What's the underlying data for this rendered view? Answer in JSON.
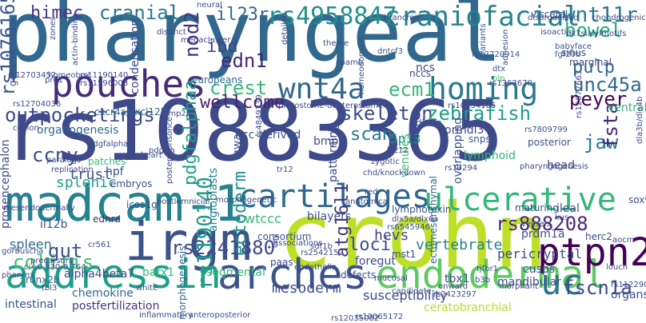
{
  "words": [
    {
      "text": "pharyngeal",
      "color": "#31688e"
    },
    {
      "text": "rs10883365",
      "color": "#3e4a89"
    },
    {
      "text": "crohn",
      "color": "#bddf26"
    },
    {
      "text": "madcam-1",
      "color": "#26828e"
    },
    {
      "text": "irgm",
      "color": "#3b528b"
    },
    {
      "text": "addressin",
      "color": "#1f9e89"
    },
    {
      "text": "pouches",
      "color": "#472c7a"
    },
    {
      "text": "arches",
      "color": "#3b528b"
    },
    {
      "text": "endodermal",
      "color": "#5ec962"
    },
    {
      "text": "cartilages",
      "color": "#31688e"
    },
    {
      "text": "ulcerative",
      "color": "#35b779"
    },
    {
      "text": "homing",
      "color": "#2a788e"
    },
    {
      "text": "ptpn2",
      "color": "#440154"
    },
    {
      "text": "wnt4a",
      "color": "#31688e"
    },
    {
      "text": "craniofacial",
      "color": "#26828e"
    },
    {
      "text": "rs4958847",
      "color": "#21918c"
    },
    {
      "text": "skeleton",
      "color": "#3e4a89"
    },
    {
      "text": "zebrafish",
      "color": "#1f9e89"
    },
    {
      "text": "rs2241880",
      "color": "#3e4a89"
    },
    {
      "text": "rs1190140",
      "color": "#1f9e89"
    },
    {
      "text": "rs888208",
      "color": "#482878"
    },
    {
      "text": "outpocketings",
      "color": "#3e4a89"
    },
    {
      "text": "rs10761659",
      "color": "#39568c"
    },
    {
      "text": "uc",
      "color": "#2a788e"
    },
    {
      "text": "ccny",
      "color": "#3e4a89"
    },
    {
      "text": "colitis",
      "color": "#44bf70"
    },
    {
      "text": "gut",
      "color": "#3b528b"
    },
    {
      "text": "ecm1",
      "color": "#35b779"
    },
    {
      "text": "wnt11r",
      "color": "#2a788e"
    },
    {
      "text": "bowel",
      "color": "#22a884"
    },
    {
      "text": "unc45a",
      "color": "#31688e"
    },
    {
      "text": "peyer",
      "color": "#440154"
    },
    {
      "text": "crest",
      "color": "#35b779"
    },
    {
      "text": "wellcome",
      "color": "#481f70"
    },
    {
      "text": "edn1",
      "color": "#482878"
    },
    {
      "text": "ibd",
      "color": "#414487"
    },
    {
      "text": "il23r",
      "color": "#31688e"
    },
    {
      "text": "cranial",
      "color": "#2a788e"
    },
    {
      "text": "himec",
      "color": "#443983"
    },
    {
      "text": "nod2",
      "color": "#46327e"
    },
    {
      "text": "scan",
      "color": "#2a788e"
    },
    {
      "text": "pdgfalphaa",
      "color": "#1f9e89"
    },
    {
      "text": "loci",
      "color": "#3b528b"
    },
    {
      "text": "ectoderm",
      "color": "#21918c"
    },
    {
      "text": "atg16l1",
      "color": "#46327e"
    },
    {
      "text": "fscn1a",
      "color": "#3e4a89"
    },
    {
      "text": "jaw",
      "color": "#2a788e"
    },
    {
      "text": "fsta",
      "color": "#482878"
    },
    {
      "text": "pulp",
      "color": "#31688e"
    },
    {
      "text": "mesoderm",
      "color": "#3e4a89"
    },
    {
      "text": "vertebrate",
      "color": "#26828e"
    },
    {
      "text": "hevs",
      "color": "#414487"
    },
    {
      "text": "5p13",
      "color": "#21918c"
    },
    {
      "text": "pericryptal",
      "color": "#3e4a89"
    },
    {
      "text": "trust",
      "color": "#3b528b"
    },
    {
      "text": "splenic",
      "color": "#1f9e89"
    },
    {
      "text": "organogenesis",
      "color": "#31688e"
    },
    {
      "text": "genome-wide",
      "color": "#3b528b"
    },
    {
      "text": "cxcr4a/cxcl12b",
      "color": "#31688e"
    },
    {
      "text": "condensation",
      "color": "#3e4a89"
    },
    {
      "text": "europeans",
      "color": "#31688e"
    },
    {
      "text": "ncc-derived",
      "color": "#3b528b"
    },
    {
      "text": "lymphotoxin",
      "color": "#3b528b"
    },
    {
      "text": "sox9b",
      "color": "#3b528b"
    },
    {
      "text": "il12b",
      "color": "#3e4a89"
    },
    {
      "text": "alpha4beta7",
      "color": "#3e4a89"
    },
    {
      "text": "barx1",
      "color": "#35b779"
    },
    {
      "text": "chemokine",
      "color": "#31688e"
    },
    {
      "text": "intestinal",
      "color": "#3b528b"
    },
    {
      "text": "postfertilization",
      "color": "#46327e"
    },
    {
      "text": "runx2b",
      "color": "#31688e"
    },
    {
      "text": "spleen",
      "color": "#31688e"
    },
    {
      "text": "prosencephalon",
      "color": "#3e4a89"
    },
    {
      "text": "hpf",
      "color": "#3b528b"
    },
    {
      "text": "embryos",
      "color": "#3b528b"
    },
    {
      "text": "patches",
      "color": "#35b779"
    },
    {
      "text": "icos1g",
      "color": "#3e4a89"
    },
    {
      "text": "ednra",
      "color": "#482878"
    },
    {
      "text": "angioblasts",
      "color": "#26828e"
    },
    {
      "text": "gwas",
      "color": "#3b528b"
    },
    {
      "text": "wtccc",
      "color": "#35b779"
    },
    {
      "text": "consortium",
      "color": "#3b528b"
    },
    {
      "text": "bilayers",
      "color": "#3b528b"
    },
    {
      "text": "foregut",
      "color": "#3e4a89"
    },
    {
      "text": "defects",
      "color": "#3e4a89"
    },
    {
      "text": "paas",
      "color": "#3e4a89"
    },
    {
      "text": "segmental",
      "color": "#35b779"
    },
    {
      "text": "morphogenesis",
      "color": "#31688e"
    },
    {
      "text": "cusps",
      "color": "#3b528b"
    },
    {
      "text": "tbx1",
      "color": "#3e4a89"
    },
    {
      "text": "mandibular",
      "color": "#3e4a89"
    },
    {
      "text": "organs",
      "color": "#3b528b"
    },
    {
      "text": "susceptibility",
      "color": "#3e4a89"
    },
    {
      "text": "ceratobranchial",
      "color": "#b5de2b"
    },
    {
      "text": "ectomesenchymal",
      "color": "#31688e"
    },
    {
      "text": "mst1",
      "color": "#3e4a89"
    },
    {
      "text": "ileal",
      "color": "#3b528b"
    },
    {
      "text": "maturing",
      "color": "#3b528b"
    },
    {
      "text": "overlapping",
      "color": "#3b528b"
    },
    {
      "text": "lymphoid",
      "color": "#35b779"
    },
    {
      "text": "snps",
      "color": "#3b528b"
    },
    {
      "text": "head",
      "color": "#3e4a89"
    },
    {
      "text": "ormdl3",
      "color": "#3e4a89"
    },
    {
      "text": "dlx2a",
      "color": "#3b528b"
    },
    {
      "text": "bmp",
      "color": "#3e4a89"
    },
    {
      "text": "patterning",
      "color": "#3e4a89"
    },
    {
      "text": "venules",
      "color": "#44bf70"
    },
    {
      "text": "posterior",
      "color": "#3b528b"
    },
    {
      "text": "prdm1a",
      "color": "#3b528b"
    },
    {
      "text": "herc2",
      "color": "#3e4a89"
    },
    {
      "text": "sinus",
      "color": "#3e4a89"
    },
    {
      "text": "marginal",
      "color": "#3e4a89"
    },
    {
      "text": "ncs",
      "color": "#3e4a89"
    },
    {
      "text": "ventral",
      "color": "#35b779"
    },
    {
      "text": "neural",
      "color": "#3e4a89"
    },
    {
      "text": "visceral",
      "color": "#3b528b"
    },
    {
      "text": "rs10761659",
      "color": "#3b528b"
    },
    {
      "text": "fgf20b",
      "color": "#3b528b"
    },
    {
      "text": "babyface",
      "color": "#3b528b"
    },
    {
      "text": "plp",
      "color": "#44bf70"
    },
    {
      "text": "dtx",
      "color": "#3b528b"
    },
    {
      "text": "chondrogenic",
      "color": "#3e4a89"
    },
    {
      "text": "nk7sialylmotifs",
      "color": "#3e4a89"
    },
    {
      "text": "isoactin",
      "color": "#3e4a89"
    },
    {
      "text": "adhesion",
      "color": "#3b528b"
    },
    {
      "text": "branchial",
      "color": "#3e4a89"
    },
    {
      "text": "disorganized",
      "color": "#3e4a89"
    },
    {
      "text": "variants",
      "color": "#3b528b"
    },
    {
      "text": "homeodomain",
      "color": "#3b528b"
    },
    {
      "text": "homeobox",
      "color": "#3b528b"
    },
    {
      "text": "dntcf3",
      "color": "#3b528b"
    },
    {
      "text": "cpamb",
      "color": "#3e4a89"
    },
    {
      "text": "theme",
      "color": "#3e4a89"
    },
    {
      "text": "megacluster",
      "color": "#3e4a89"
    },
    {
      "text": "distinct",
      "color": "#3e4a89"
    },
    {
      "text": "detailed",
      "color": "#3e4a89"
    },
    {
      "text": "prg1",
      "color": "#3b528b"
    },
    {
      "text": "actin-binding",
      "color": "#3e4a89"
    },
    {
      "text": "zones",
      "color": "#3e4a89"
    },
    {
      "text": "rs12704036",
      "color": "#3e4a89"
    },
    {
      "text": "rs11190140",
      "color": "#3e4a89"
    },
    {
      "text": "rs11596008",
      "color": "#3e4a89"
    },
    {
      "text": "ceylon",
      "color": "#3e4a89"
    },
    {
      "text": "protostome-deuterostome",
      "color": "#3e4a89"
    },
    {
      "text": "rs10734105",
      "color": "#3e4a89"
    },
    {
      "text": "rs7809799",
      "color": "#3b528b"
    },
    {
      "text": "rs12677663",
      "color": "#3e4a89"
    },
    {
      "text": "rs1363670",
      "color": "#3e4a89"
    },
    {
      "text": "rs12720914",
      "color": "#3b528b"
    },
    {
      "text": "paralogs",
      "color": "#3e4a89"
    },
    {
      "text": "replication",
      "color": "#3e4a89"
    },
    {
      "text": "pdgfalphab",
      "color": "#3e4a89"
    },
    {
      "text": "heart",
      "color": "#3e4a89"
    },
    {
      "text": "postepiconsonce",
      "color": "#3e4a89"
    },
    {
      "text": "rs4849339",
      "color": "#3e4a89"
    },
    {
      "text": "mesendodermally",
      "color": "#3e4a89"
    },
    {
      "text": "morphogenetic",
      "color": "#3e4a89"
    },
    {
      "text": "anatomical",
      "color": "#3e4a89"
    },
    {
      "text": "chd/knockdown",
      "color": "#3e4a89"
    },
    {
      "text": "zygotic",
      "color": "#3e4a89"
    },
    {
      "text": "red",
      "color": "#3e4a89"
    },
    {
      "text": "tr12",
      "color": "#3e4a89"
    },
    {
      "text": "rs13294",
      "color": "#3e4a89"
    },
    {
      "text": "lyz12",
      "color": "#3e4a89"
    },
    {
      "text": "pharyngogenesis",
      "color": "#3e4a89"
    },
    {
      "text": "dlx5a/dlx6a",
      "color": "#3e4a89"
    },
    {
      "text": "rs6545946",
      "color": "#3e4a89"
    },
    {
      "text": "dla3b/dla4b",
      "color": "#3e4a89"
    },
    {
      "text": "gorbuscha",
      "color": "#3e4a89"
    },
    {
      "text": "pharynx",
      "color": "#3e4a89"
    },
    {
      "text": "precursors",
      "color": "#3e4a89"
    },
    {
      "text": "cr561",
      "color": "#3e4a89"
    },
    {
      "text": "rs2542152",
      "color": "#3e4a89"
    },
    {
      "text": "associations",
      "color": "#3e4a89"
    },
    {
      "text": "sdf1b",
      "color": "#3e4a89"
    },
    {
      "text": "cey",
      "color": "#3e4a89"
    },
    {
      "text": "endothelia",
      "color": "#3e4a89"
    },
    {
      "text": "mucosal",
      "color": "#3e4a89"
    },
    {
      "text": "candidate",
      "color": "#3e4a89"
    },
    {
      "text": "onward",
      "color": "#3e4a89"
    },
    {
      "text": "rs2423297",
      "color": "#3e4a89"
    },
    {
      "text": "rs10065172",
      "color": "#3e4a89"
    },
    {
      "text": "b3b",
      "color": "#3e4a89"
    },
    {
      "text": "tjfbr1",
      "color": "#3e4a89"
    },
    {
      "text": "morphant",
      "color": "#3e4a89"
    },
    {
      "text": "kus",
      "color": "#3e4a89"
    },
    {
      "text": "vessels",
      "color": "#3e4a89"
    },
    {
      "text": "louch",
      "color": "#3e4a89"
    },
    {
      "text": "aocm",
      "color": "#3e4a89"
    },
    {
      "text": "rs11229030",
      "color": "#3e4a89"
    },
    {
      "text": "tbl3",
      "color": "#3e4a89"
    },
    {
      "text": "white",
      "color": "#3e4a89"
    },
    {
      "text": "inflammatory",
      "color": "#3e4a89"
    },
    {
      "text": "anteroposterior",
      "color": "#3e4a89"
    },
    {
      "text": "rs12035082",
      "color": "#3e4a89"
    },
    {
      "text": "ci=0.330-0.764",
      "color": "#3e4a89"
    },
    {
      "text": "rs12703452",
      "color": "#3e4a89"
    },
    {
      "text": "pdgfra",
      "color": "#3e4a89"
    },
    {
      "text": "postlemnicial",
      "color": "#3e4a89"
    },
    {
      "text": "bmp2b",
      "color": "#3e4a89"
    },
    {
      "text": "nccs",
      "color": "#3e4a89"
    }
  ]
}
